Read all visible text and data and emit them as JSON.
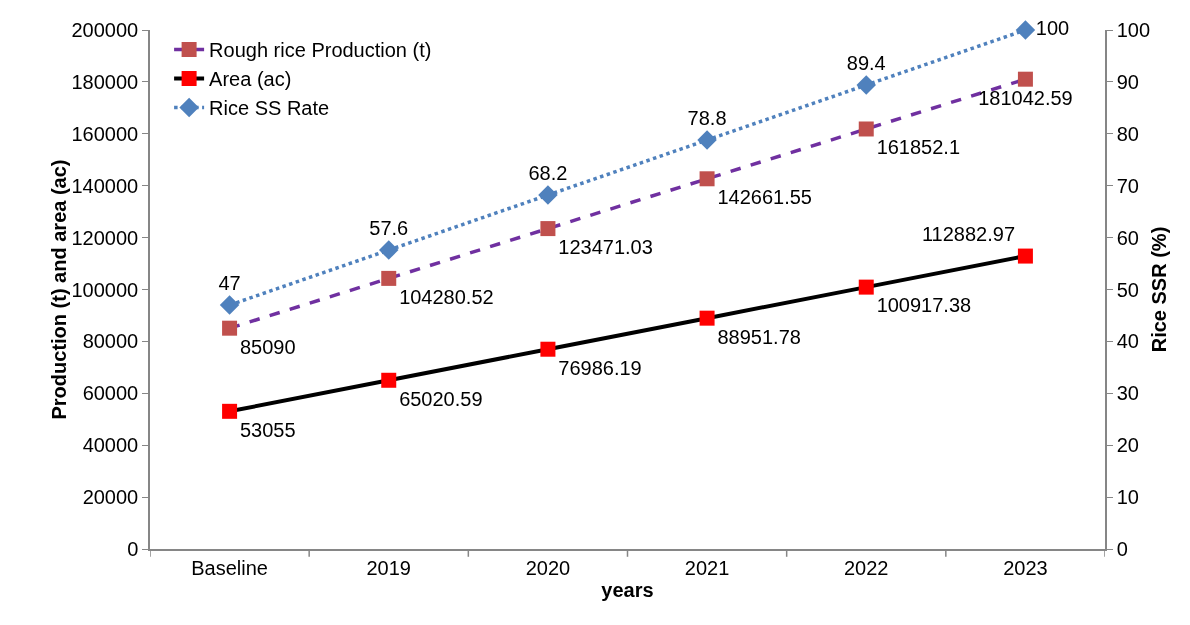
{
  "chart_data": {
    "type": "line",
    "xlabel": "years",
    "ylabel": "Production (t) and area (ac)",
    "y2label": "Rice SSR (%)",
    "categories": [
      "Baseline",
      "2019",
      "2020",
      "2021",
      "2022",
      "2023"
    ],
    "series": [
      {
        "name": "Rough rice Production (t)",
        "color": "#7030a0",
        "colors": [
          "#c0504d",
          "#c0504d",
          "#c0504d",
          "#c0504d",
          "#c0504d",
          "#c0504d"
        ],
        "marker": "square",
        "line_style": "dashed",
        "values": [
          85090,
          104280.52,
          123471.03,
          142661.55,
          161852.1,
          181042.59
        ]
      },
      {
        "name": "Area (ac)",
        "color": "#000000",
        "colors": [
          "#ff0000",
          "#ff0000",
          "#ff0000",
          "#ff0000",
          "#ff0000",
          "#ff0000"
        ],
        "marker": "square",
        "line_style": "solid",
        "values": [
          53055,
          65020.59,
          76986.19,
          88951.78,
          100917.38,
          112882.97
        ]
      },
      {
        "name": "Rice SS Rate",
        "color": "#4f81bd",
        "marker": "diamond",
        "line_style": "dotted",
        "axis": "y2",
        "values": [
          47,
          57.6,
          68.2,
          78.8,
          89.4,
          100
        ]
      }
    ],
    "ylim": [
      0,
      200000
    ],
    "yticks": [
      0,
      20000,
      40000,
      60000,
      80000,
      100000,
      120000,
      140000,
      160000,
      180000,
      200000
    ],
    "y2lim": [
      0,
      100
    ],
    "y2ticks": [
      0,
      10,
      20,
      30,
      40,
      50,
      60,
      70,
      80,
      90,
      100
    ],
    "grid": false,
    "legend": "top left",
    "data_labels": true
  }
}
